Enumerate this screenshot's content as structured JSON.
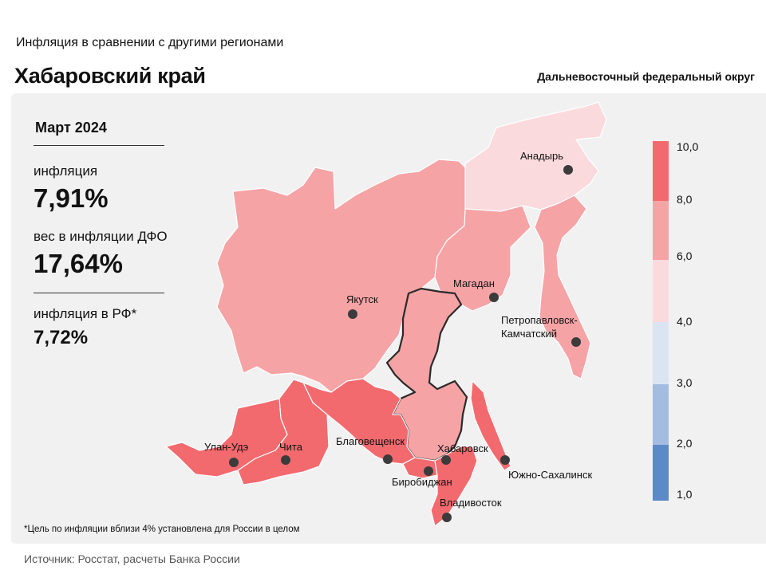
{
  "header": {
    "subtitle": "Инфляция в сравнении с другими регионами",
    "title": "Хабаровский край",
    "district": "Дальневосточный федеральный округ"
  },
  "stats": {
    "period": "Март 2024",
    "inflation_label": "инфляция",
    "inflation_value": "7,91%",
    "weight_label": "вес в инфляции ДФО",
    "weight_value": "17,64%",
    "rf_label": "инфляция в РФ*",
    "rf_value": "7,72%"
  },
  "colors": {
    "panel_bg": "#f1f1f2",
    "bin_8_10": "#f26a6e",
    "bin_6_8": "#f6a3a6",
    "bin_4_6": "#fbdadd",
    "bin_3_4": "#dbe4f2",
    "bin_2_3": "#a3bcdf",
    "bin_1_2": "#5b8ac6",
    "border": "#ffffff",
    "dot": "#3b3b3b"
  },
  "legend": {
    "ticks": [
      "10,0",
      "8,0",
      "6,0",
      "4,0",
      "3,0",
      "2,0",
      "1,0"
    ]
  },
  "cities": [
    {
      "name": "Анадырь"
    },
    {
      "name": "Якутск"
    },
    {
      "name": "Магадан"
    },
    {
      "name": "Петропавловск-"
    },
    {
      "name": "Камчатский"
    },
    {
      "name": "Улан-Удэ"
    },
    {
      "name": "Чита"
    },
    {
      "name": "Благовещенск"
    },
    {
      "name": "Хабаровск"
    },
    {
      "name": "Биробиджан"
    },
    {
      "name": "Южно-Сахалинск"
    },
    {
      "name": "Владивосток"
    }
  ],
  "footnote": "*Цель по инфляции вблизи 4% установлена для России в целом",
  "source": "Источник: Росстат, расчеты  Банка России"
}
